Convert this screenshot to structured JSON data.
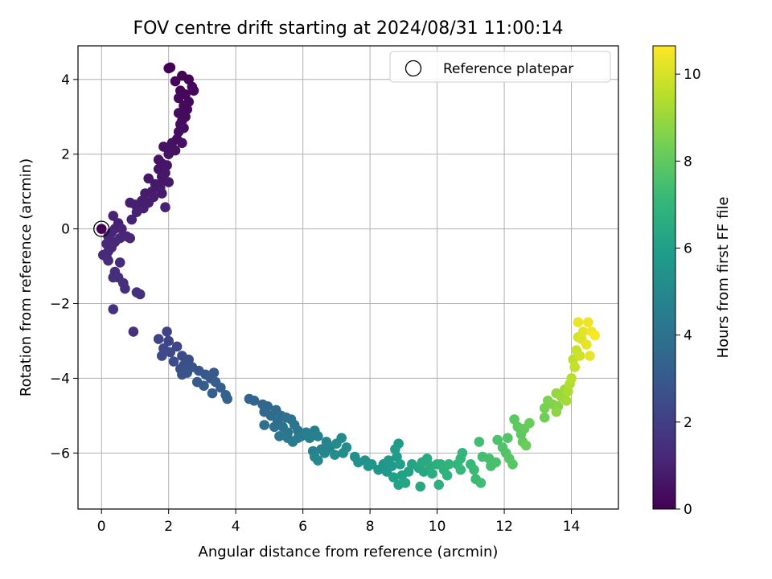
{
  "chart_data": {
    "type": "scatter",
    "title": "FOV centre drift starting at 2024/08/31 11:00:14",
    "xlabel": "Angular distance from reference (arcmin)",
    "ylabel": "Rotation from reference (arcmin)",
    "xlim": [
      -0.7,
      15.4
    ],
    "ylim": [
      -7.5,
      4.9
    ],
    "x_ticks": [
      0,
      2,
      4,
      6,
      8,
      10,
      12,
      14
    ],
    "y_ticks": [
      -6,
      -4,
      -2,
      0,
      2,
      4
    ],
    "grid": true,
    "legend": {
      "placement": "top-right",
      "entries": [
        "Reference platepar"
      ]
    },
    "reference_point": {
      "x": 0,
      "y": 0
    },
    "colorbar": {
      "label": "Hours from first FF file",
      "colormap": "viridis",
      "range": [
        0,
        10.65
      ],
      "ticks": [
        0,
        2,
        4,
        6,
        8,
        10
      ]
    },
    "colors": [
      "#440154",
      "#482878",
      "#3e4989",
      "#31688e",
      "#26828e",
      "#1f9e89",
      "#35b779",
      "#6ece58",
      "#b5de2b",
      "#fde725"
    ],
    "points": [
      [
        2.0,
        4.3,
        0.02
      ],
      [
        2.05,
        4.32,
        0.03
      ],
      [
        2.4,
        4.1,
        0.08
      ],
      [
        2.6,
        4.0,
        0.1
      ],
      [
        2.2,
        3.95,
        0.12
      ],
      [
        2.7,
        3.8,
        0.14
      ],
      [
        2.35,
        3.7,
        0.16
      ],
      [
        2.75,
        3.7,
        0.18
      ],
      [
        2.5,
        3.6,
        0.2
      ],
      [
        2.3,
        3.5,
        0.22
      ],
      [
        2.6,
        3.4,
        0.24
      ],
      [
        2.45,
        3.3,
        0.26
      ],
      [
        2.55,
        3.2,
        0.28
      ],
      [
        2.3,
        3.1,
        0.3
      ],
      [
        2.5,
        3.0,
        0.32
      ],
      [
        2.4,
        2.9,
        0.34
      ],
      [
        2.35,
        2.8,
        0.36
      ],
      [
        2.45,
        2.7,
        0.38
      ],
      [
        2.3,
        2.6,
        0.4
      ],
      [
        2.25,
        2.4,
        0.42
      ],
      [
        2.4,
        2.3,
        0.44
      ],
      [
        2.1,
        2.3,
        0.46
      ],
      [
        2.05,
        2.2,
        0.48
      ],
      [
        1.85,
        2.2,
        0.5
      ],
      [
        2.2,
        2.1,
        0.52
      ],
      [
        2.0,
        2.0,
        0.54
      ],
      [
        1.7,
        1.85,
        0.56
      ],
      [
        1.8,
        1.75,
        0.58
      ],
      [
        1.95,
        1.7,
        0.6
      ],
      [
        1.7,
        1.6,
        0.62
      ],
      [
        1.9,
        1.5,
        0.64
      ],
      [
        1.8,
        1.4,
        0.66
      ],
      [
        1.85,
        1.3,
        0.68
      ],
      [
        1.4,
        1.35,
        0.7
      ],
      [
        1.6,
        1.2,
        0.72
      ],
      [
        2.0,
        1.25,
        0.74
      ],
      [
        1.75,
        1.1,
        0.76
      ],
      [
        1.5,
        1.0,
        0.78
      ],
      [
        1.8,
        0.95,
        0.8
      ],
      [
        1.3,
        0.95,
        0.82
      ],
      [
        1.55,
        0.85,
        0.84
      ],
      [
        1.2,
        0.75,
        0.86
      ],
      [
        1.4,
        0.7,
        0.88
      ],
      [
        0.85,
        0.7,
        0.9
      ],
      [
        1.0,
        0.65,
        0.92
      ],
      [
        1.25,
        0.55,
        0.94
      ],
      [
        1.9,
        0.58,
        0.96
      ],
      [
        1.05,
        0.45,
        0.98
      ],
      [
        0.9,
        0.25,
        1.0
      ],
      [
        0.35,
        0.35,
        1.02
      ],
      [
        0.5,
        0.15,
        1.04
      ],
      [
        0.4,
        0.0,
        1.06
      ],
      [
        0.6,
        0.0,
        1.08
      ],
      [
        0.3,
        -0.1,
        1.1
      ],
      [
        0.2,
        -0.2,
        1.12
      ],
      [
        0.55,
        -0.25,
        1.14
      ],
      [
        0.75,
        -0.2,
        1.16
      ],
      [
        0.85,
        -0.25,
        1.18
      ],
      [
        0.4,
        -0.35,
        1.2
      ],
      [
        0.15,
        -0.4,
        1.22
      ],
      [
        0.3,
        -0.5,
        1.24
      ],
      [
        0.2,
        -0.6,
        1.26
      ],
      [
        0.05,
        -0.7,
        1.28
      ],
      [
        0.15,
        -0.75,
        1.3
      ],
      [
        0.2,
        -0.85,
        1.32
      ],
      [
        0.55,
        -0.9,
        1.34
      ],
      [
        0.4,
        -1.15,
        1.36
      ],
      [
        0.35,
        -1.3,
        1.38
      ],
      [
        0.5,
        -1.3,
        1.4
      ],
      [
        0.65,
        -1.45,
        1.42
      ],
      [
        0.7,
        -1.6,
        1.44
      ],
      [
        1.05,
        -1.7,
        1.46
      ],
      [
        1.15,
        -1.75,
        1.48
      ],
      [
        0.35,
        -2.15,
        1.5
      ],
      [
        0.95,
        -2.75,
        1.52
      ],
      [
        1.95,
        -2.75,
        2.1
      ],
      [
        1.7,
        -2.95,
        2.15
      ],
      [
        2.0,
        -3.0,
        2.2
      ],
      [
        2.25,
        -3.15,
        2.25
      ],
      [
        1.85,
        -3.2,
        2.3
      ],
      [
        2.05,
        -3.3,
        2.35
      ],
      [
        1.8,
        -3.4,
        2.4
      ],
      [
        2.4,
        -3.4,
        2.45
      ],
      [
        2.15,
        -3.55,
        2.5
      ],
      [
        2.6,
        -3.5,
        2.55
      ],
      [
        2.45,
        -3.65,
        2.6
      ],
      [
        2.35,
        -3.75,
        2.65
      ],
      [
        2.7,
        -3.7,
        2.7
      ],
      [
        2.55,
        -3.85,
        2.75
      ],
      [
        2.4,
        -3.9,
        2.8
      ],
      [
        2.9,
        -3.8,
        2.85
      ],
      [
        3.1,
        -3.9,
        2.9
      ],
      [
        3.35,
        -3.85,
        2.95
      ],
      [
        3.25,
        -4.0,
        3.0
      ],
      [
        2.85,
        -4.1,
        3.05
      ],
      [
        3.05,
        -4.2,
        3.1
      ],
      [
        3.4,
        -4.1,
        3.15
      ],
      [
        3.55,
        -4.25,
        3.2
      ],
      [
        3.3,
        -4.4,
        3.25
      ],
      [
        3.7,
        -4.45,
        3.3
      ],
      [
        3.75,
        -4.55,
        3.35
      ],
      [
        4.4,
        -4.55,
        3.4
      ],
      [
        4.55,
        -4.6,
        3.45
      ],
      [
        4.8,
        -4.7,
        3.5
      ],
      [
        4.95,
        -4.75,
        3.55
      ],
      [
        4.85,
        -4.9,
        3.6
      ],
      [
        5.2,
        -4.85,
        3.65
      ],
      [
        5.05,
        -5.0,
        3.7
      ],
      [
        5.35,
        -5.0,
        3.75
      ],
      [
        5.25,
        -5.15,
        3.8
      ],
      [
        4.85,
        -5.25,
        3.85
      ],
      [
        5.15,
        -5.3,
        3.9
      ],
      [
        5.5,
        -5.05,
        3.95
      ],
      [
        5.65,
        -5.1,
        4.0
      ],
      [
        5.4,
        -5.3,
        4.05
      ],
      [
        5.75,
        -5.25,
        4.1
      ],
      [
        5.55,
        -5.45,
        4.15
      ],
      [
        5.85,
        -5.4,
        4.2
      ],
      [
        5.3,
        -5.55,
        4.25
      ],
      [
        5.55,
        -5.6,
        4.3
      ],
      [
        5.85,
        -5.6,
        4.35
      ],
      [
        5.7,
        -5.7,
        4.4
      ],
      [
        5.95,
        -5.55,
        4.45
      ],
      [
        6.1,
        -5.45,
        4.5
      ],
      [
        6.35,
        -5.4,
        4.55
      ],
      [
        6.2,
        -5.6,
        4.6
      ],
      [
        6.45,
        -5.55,
        4.65
      ],
      [
        6.3,
        -5.95,
        4.7
      ],
      [
        6.55,
        -5.9,
        4.75
      ],
      [
        6.7,
        -5.7,
        4.8
      ],
      [
        6.8,
        -5.85,
        4.85
      ],
      [
        6.65,
        -6.0,
        4.9
      ],
      [
        6.35,
        -6.1,
        4.95
      ],
      [
        6.45,
        -6.2,
        5.0
      ],
      [
        7.15,
        -5.6,
        5.05
      ],
      [
        7.0,
        -5.75,
        5.1
      ],
      [
        7.3,
        -5.85,
        5.15
      ],
      [
        7.2,
        -6.0,
        5.2
      ],
      [
        6.95,
        -6.05,
        5.25
      ],
      [
        7.55,
        -6.1,
        5.3
      ],
      [
        7.65,
        -6.25,
        5.35
      ],
      [
        7.85,
        -6.2,
        5.4
      ],
      [
        8.05,
        -6.3,
        5.45
      ],
      [
        7.95,
        -6.35,
        5.5
      ],
      [
        8.25,
        -6.45,
        5.55
      ],
      [
        8.4,
        -6.3,
        5.6
      ],
      [
        8.55,
        -6.2,
        5.65
      ],
      [
        8.5,
        -6.5,
        5.7
      ],
      [
        8.65,
        -6.35,
        5.75
      ],
      [
        8.8,
        -6.1,
        5.8
      ],
      [
        8.85,
        -5.75,
        5.85
      ],
      [
        8.75,
        -5.9,
        5.9
      ],
      [
        8.9,
        -6.3,
        5.95
      ],
      [
        8.7,
        -6.65,
        6.0
      ],
      [
        8.95,
        -6.6,
        6.05
      ],
      [
        8.85,
        -6.85,
        6.1
      ],
      [
        9.15,
        -6.5,
        6.15
      ],
      [
        9.25,
        -6.3,
        6.2
      ],
      [
        9.05,
        -6.8,
        6.25
      ],
      [
        9.45,
        -6.4,
        6.3
      ],
      [
        9.6,
        -6.5,
        6.35
      ],
      [
        9.5,
        -6.9,
        6.4
      ],
      [
        9.55,
        -6.25,
        6.45
      ],
      [
        9.7,
        -6.15,
        6.5
      ],
      [
        9.8,
        -6.35,
        6.55
      ],
      [
        9.85,
        -6.55,
        6.6
      ],
      [
        10.0,
        -6.3,
        6.65
      ],
      [
        10.05,
        -6.85,
        6.7
      ],
      [
        10.1,
        -6.3,
        6.75
      ],
      [
        10.2,
        -6.45,
        6.8
      ],
      [
        10.3,
        -6.6,
        6.85
      ],
      [
        10.35,
        -6.3,
        6.9
      ],
      [
        10.6,
        -6.3,
        6.95
      ],
      [
        10.7,
        -6.15,
        7.0
      ],
      [
        10.75,
        -6.0,
        7.05
      ],
      [
        10.7,
        -6.45,
        7.1
      ],
      [
        11.0,
        -6.3,
        7.15
      ],
      [
        11.1,
        -6.45,
        7.2
      ],
      [
        11.15,
        -6.7,
        7.25
      ],
      [
        11.3,
        -6.8,
        7.3
      ],
      [
        11.25,
        -5.7,
        7.35
      ],
      [
        11.35,
        -6.1,
        7.4
      ],
      [
        11.55,
        -6.15,
        7.45
      ],
      [
        11.6,
        -6.35,
        7.5
      ],
      [
        11.75,
        -6.25,
        7.55
      ],
      [
        11.8,
        -5.65,
        7.6
      ],
      [
        11.95,
        -5.85,
        7.65
      ],
      [
        12.05,
        -6.0,
        7.7
      ],
      [
        12.1,
        -5.6,
        7.75
      ],
      [
        12.15,
        -6.15,
        7.8
      ],
      [
        12.25,
        -6.3,
        7.85
      ],
      [
        12.3,
        -5.1,
        7.9
      ],
      [
        12.4,
        -5.3,
        7.95
      ],
      [
        12.5,
        -5.5,
        8.0
      ],
      [
        12.55,
        -5.7,
        8.05
      ],
      [
        12.6,
        -5.35,
        8.1
      ],
      [
        12.75,
        -5.2,
        8.15
      ],
      [
        12.65,
        -5.8,
        8.2
      ],
      [
        13.2,
        -5.05,
        8.3
      ],
      [
        13.2,
        -4.8,
        8.4
      ],
      [
        13.3,
        -4.6,
        8.5
      ],
      [
        13.45,
        -4.7,
        8.6
      ],
      [
        13.6,
        -4.75,
        8.7
      ],
      [
        13.55,
        -4.9,
        8.8
      ],
      [
        13.55,
        -4.4,
        8.9
      ],
      [
        13.7,
        -4.5,
        9.0
      ],
      [
        13.8,
        -4.3,
        9.1
      ],
      [
        13.85,
        -4.6,
        9.2
      ],
      [
        13.9,
        -4.35,
        9.3
      ],
      [
        13.95,
        -4.15,
        9.4
      ],
      [
        14.0,
        -4.0,
        9.5
      ],
      [
        14.05,
        -3.5,
        9.6
      ],
      [
        14.1,
        -3.7,
        9.7
      ],
      [
        14.15,
        -3.25,
        9.8
      ],
      [
        14.25,
        -3.4,
        9.9
      ],
      [
        14.2,
        -2.9,
        10.0
      ],
      [
        14.3,
        -2.95,
        10.1
      ],
      [
        14.35,
        -2.75,
        10.2
      ],
      [
        14.45,
        -3.1,
        10.25
      ],
      [
        14.55,
        -3.4,
        10.3
      ],
      [
        14.2,
        -2.5,
        10.35
      ],
      [
        14.5,
        -2.5,
        10.4
      ],
      [
        14.6,
        -2.75,
        10.5
      ],
      [
        14.7,
        -2.85,
        10.6
      ]
    ]
  }
}
